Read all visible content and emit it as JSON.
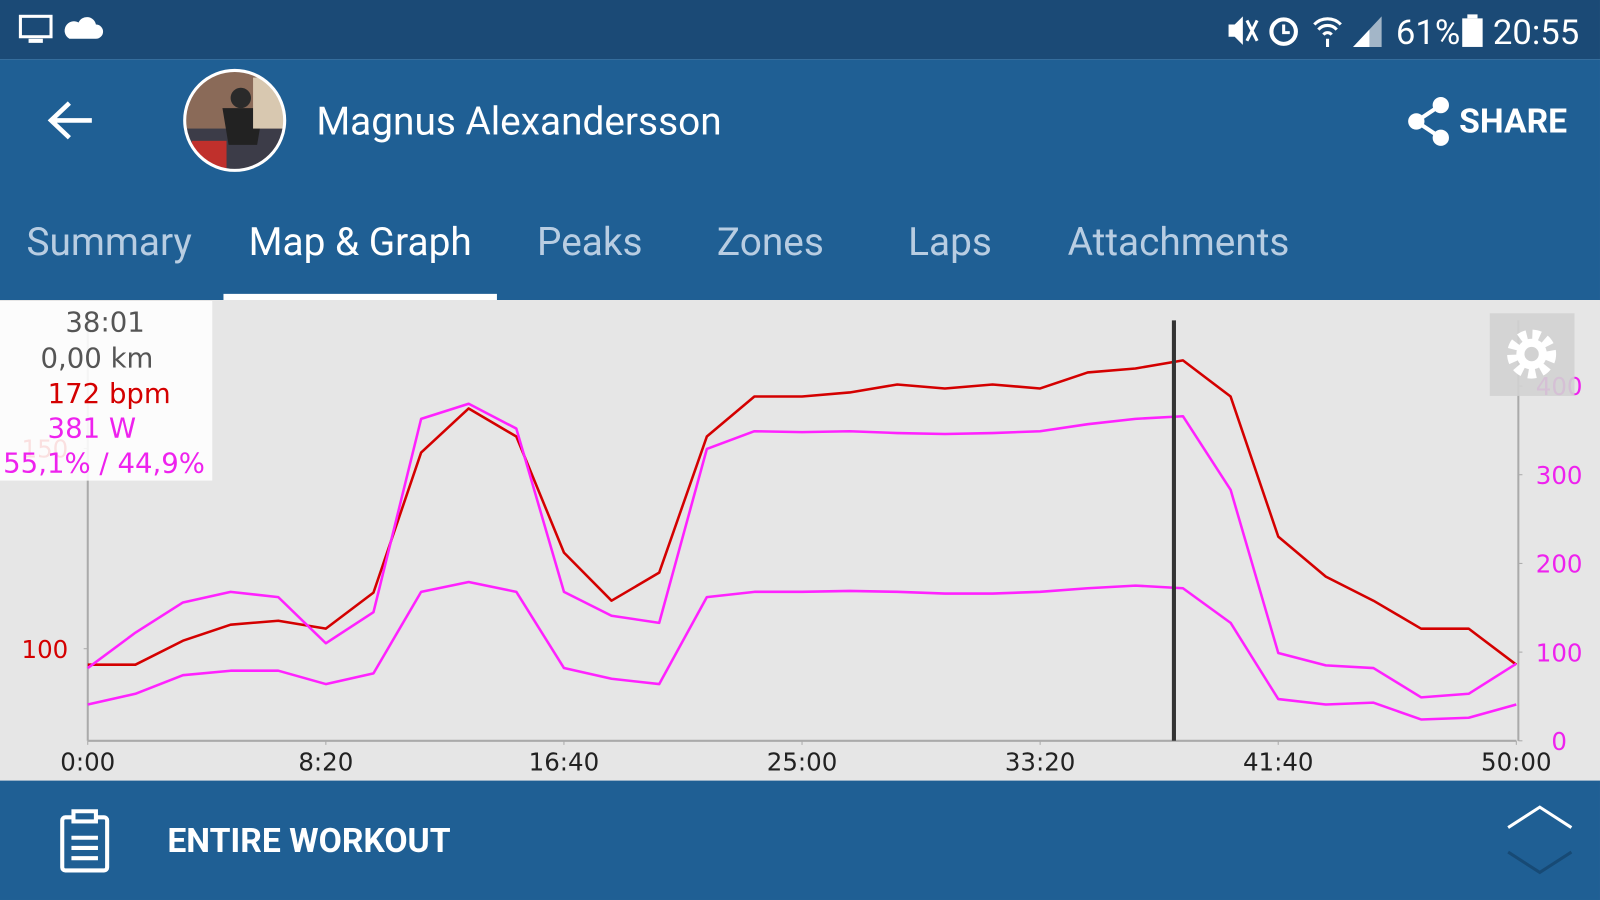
{
  "status_bar": {
    "battery": "61%",
    "time": "20:55"
  },
  "header": {
    "name": "Magnus Alexandersson",
    "share": "SHARE"
  },
  "tabs": [
    "Summary",
    "Map & Graph",
    "Peaks",
    "Zones",
    "Laps",
    "Attachments"
  ],
  "active_tab": 1,
  "chart_data": {
    "type": "line",
    "x": [
      0,
      100,
      200,
      300,
      400,
      500,
      600,
      700,
      800,
      900,
      1000,
      1100,
      1200,
      1300,
      1400,
      1500,
      1600,
      1700,
      1800,
      1900,
      2000,
      2100,
      2200,
      2300,
      2400,
      2500,
      2600,
      2700,
      2800,
      2900,
      3000
    ],
    "xlim": [
      0,
      3000
    ],
    "xticks": [
      {
        "value": 0,
        "label": "0:00"
      },
      {
        "value": 500,
        "label": "8:20"
      },
      {
        "value": 1000,
        "label": "16:40"
      },
      {
        "value": 1500,
        "label": "25:00"
      },
      {
        "value": 2000,
        "label": "33:20"
      },
      {
        "value": 2500,
        "label": "41:40"
      },
      {
        "value": 3000,
        "label": "50:00"
      }
    ],
    "ylim": [
      77,
      182
    ],
    "yticks": [
      100,
      150
    ],
    "y_color": "#d40000",
    "y2lim": [
      0,
      474
    ],
    "y2ticks": [
      0,
      100,
      200,
      300,
      400
    ],
    "y2_color": "#ee22ee",
    "series": [
      {
        "color": "#d40000",
        "values": [
          96,
          96,
          102,
          106,
          107,
          105,
          114,
          149,
          160,
          153,
          124,
          112,
          119,
          153,
          163,
          163,
          164,
          166,
          165,
          166,
          165,
          169,
          170,
          172,
          163,
          128,
          118,
          112,
          105,
          105,
          96
        ]
      },
      {
        "color": "#ff22ff",
        "axis": "y2",
        "values": [
          82,
          122,
          156,
          168,
          162,
          110,
          145,
          363,
          380,
          352,
          168,
          141,
          133,
          329,
          349,
          348,
          349,
          347,
          346,
          347,
          349,
          357,
          363,
          366,
          283,
          99,
          85,
          82,
          49,
          53,
          87
        ]
      },
      {
        "color": "#ff22ff",
        "axis": "y2",
        "values": [
          41,
          53,
          74,
          79,
          79,
          64,
          76,
          168,
          179,
          168,
          82,
          70,
          64,
          162,
          168,
          168,
          169,
          168,
          166,
          166,
          168,
          172,
          175,
          172,
          133,
          47,
          41,
          43,
          24,
          26,
          41
        ]
      }
    ],
    "cursor": {
      "x": 2281,
      "time": "38:01",
      "distance": "0,00 km",
      "heart_rate": "172 bpm",
      "power": "381 W",
      "balance": "55,1% / 44,9%"
    }
  },
  "footer": {
    "label": "ENTIRE WORKOUT"
  }
}
